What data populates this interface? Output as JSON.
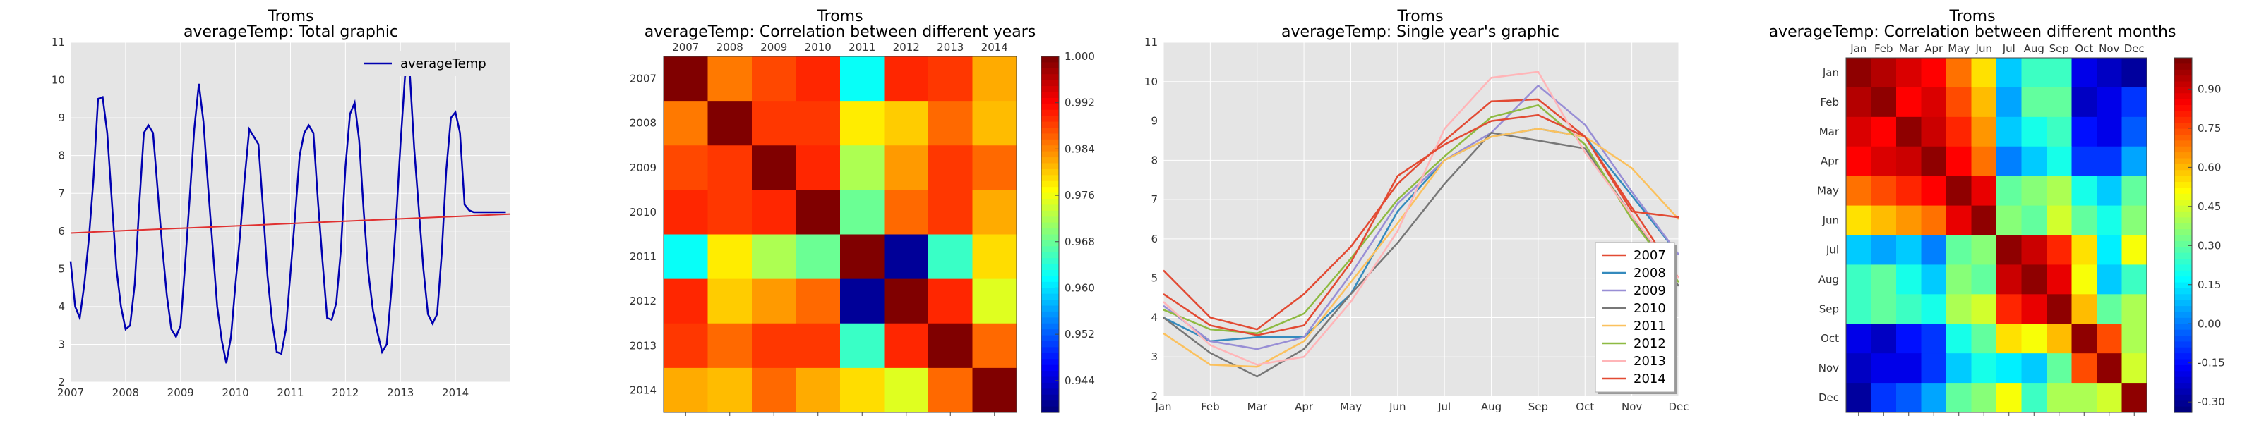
{
  "chart_data": [
    {
      "type": "line",
      "title": "Troms",
      "subtitle": "averageTemp: Total graphic",
      "x_ticks": [
        "2007",
        "2008",
        "2009",
        "2010",
        "2011",
        "2012",
        "2013",
        "2014"
      ],
      "xlim": [
        2007.0,
        2015.0
      ],
      "ylim": [
        2,
        11
      ],
      "y_ticks": [
        "2",
        "3",
        "4",
        "5",
        "6",
        "7",
        "8",
        "9",
        "10",
        "11"
      ],
      "legend": "upper-right",
      "series": [
        {
          "name": "averageTemp",
          "color": "#0000b0",
          "x": [
            2007.0,
            2007.083,
            2007.167,
            2007.25,
            2007.333,
            2007.417,
            2007.5,
            2007.583,
            2007.667,
            2007.75,
            2007.833,
            2007.917,
            2008.0,
            2008.083,
            2008.167,
            2008.25,
            2008.333,
            2008.417,
            2008.5,
            2008.583,
            2008.667,
            2008.75,
            2008.833,
            2008.917,
            2009.0,
            2009.083,
            2009.167,
            2009.25,
            2009.333,
            2009.417,
            2009.5,
            2009.583,
            2009.667,
            2009.75,
            2009.833,
            2009.917,
            2010.0,
            2010.083,
            2010.167,
            2010.25,
            2010.333,
            2010.417,
            2010.5,
            2010.583,
            2010.667,
            2010.75,
            2010.833,
            2010.917,
            2011.0,
            2011.083,
            2011.167,
            2011.25,
            2011.333,
            2011.417,
            2011.5,
            2011.583,
            2011.667,
            2011.75,
            2011.833,
            2011.917,
            2012.0,
            2012.083,
            2012.167,
            2012.25,
            2012.333,
            2012.417,
            2012.5,
            2012.583,
            2012.667,
            2012.75,
            2012.833,
            2012.917,
            2013.0,
            2013.083,
            2013.167,
            2013.25,
            2013.333,
            2013.417,
            2013.5,
            2013.583,
            2013.667,
            2013.75,
            2013.833,
            2013.917,
            2014.0,
            2014.083,
            2014.167,
            2014.25,
            2014.333,
            2014.417,
            2014.5,
            2014.583,
            2014.667,
            2014.75,
            2014.833,
            2014.917
          ],
          "values": [
            5.2,
            4.0,
            3.7,
            4.6,
            5.8,
            7.4,
            9.5,
            9.55,
            8.6,
            6.8,
            5.0,
            4.0,
            3.4,
            3.5,
            4.6,
            6.7,
            8.6,
            8.8,
            8.6,
            7.1,
            5.6,
            4.3,
            3.4,
            3.2,
            3.5,
            5.1,
            6.9,
            8.7,
            9.9,
            8.9,
            7.2,
            5.6,
            4.0,
            3.1,
            2.5,
            3.2,
            4.6,
            5.9,
            7.4,
            8.7,
            8.5,
            8.3,
            6.6,
            4.8,
            3.6,
            2.8,
            2.75,
            3.4,
            4.9,
            6.4,
            8.0,
            8.6,
            8.8,
            8.6,
            6.8,
            5.2,
            3.7,
            3.65,
            4.1,
            5.5,
            7.7,
            9.1,
            9.4,
            8.4,
            6.5,
            4.9,
            3.9,
            3.3,
            2.8,
            3.0,
            4.4,
            6.2,
            8.3,
            10.1,
            10.25,
            8.2,
            6.6,
            5.0,
            3.8,
            3.55,
            3.8,
            5.4,
            7.6,
            9.0,
            9.15,
            8.6,
            6.7,
            6.55,
            6.5,
            6.5,
            6.5,
            6.5,
            6.5,
            6.5,
            6.5,
            6.5
          ]
        }
      ],
      "trend": {
        "color": "#e03030",
        "from": [
          2007.0,
          5.95
        ],
        "to": [
          2015.0,
          6.45
        ]
      }
    },
    {
      "type": "heatmap",
      "title": "Troms",
      "subtitle": "averageTemp: Correlation between different years",
      "labels": [
        "2007",
        "2008",
        "2009",
        "2010",
        "2011",
        "2012",
        "2013",
        "2014"
      ],
      "vmin": 0.9385,
      "vmax": 1.0,
      "colorbar_ticks": [
        "1.000",
        "0.992",
        "0.984",
        "0.976",
        "0.968",
        "0.960",
        "0.952",
        "0.944"
      ],
      "matrix": [
        [
          1.0,
          0.985,
          0.988,
          0.99,
          0.962,
          0.99,
          0.989,
          0.982
        ],
        [
          0.985,
          1.0,
          0.989,
          0.989,
          0.978,
          0.98,
          0.986,
          0.981
        ],
        [
          0.988,
          0.989,
          1.0,
          0.99,
          0.972,
          0.983,
          0.989,
          0.986
        ],
        [
          0.99,
          0.989,
          0.99,
          1.0,
          0.968,
          0.986,
          0.989,
          0.982
        ],
        [
          0.962,
          0.978,
          0.972,
          0.968,
          1.0,
          0.94,
          0.965,
          0.979
        ],
        [
          0.99,
          0.98,
          0.983,
          0.986,
          0.94,
          1.0,
          0.99,
          0.975
        ],
        [
          0.989,
          0.986,
          0.989,
          0.989,
          0.965,
          0.99,
          1.0,
          0.986
        ],
        [
          0.982,
          0.981,
          0.986,
          0.982,
          0.979,
          0.975,
          0.986,
          1.0
        ]
      ]
    },
    {
      "type": "line",
      "title": "Troms",
      "subtitle": "averageTemp: Single year's graphic",
      "categories": [
        "Jan",
        "Feb",
        "Mar",
        "Apr",
        "May",
        "Jun",
        "Jul",
        "Aug",
        "Sep",
        "Oct",
        "Nov",
        "Dec"
      ],
      "ylim": [
        2,
        11
      ],
      "y_ticks": [
        "2",
        "3",
        "4",
        "5",
        "6",
        "7",
        "8",
        "9",
        "10",
        "11"
      ],
      "legend": "lower-right",
      "series": [
        {
          "name": "2007",
          "color": "#e24a33",
          "values": [
            5.2,
            4.0,
            3.7,
            4.6,
            5.8,
            7.4,
            8.5,
            9.5,
            9.55,
            8.6,
            6.8,
            5.0
          ]
        },
        {
          "name": "2008",
          "color": "#348abd",
          "values": [
            4.0,
            3.4,
            3.5,
            3.5,
            4.6,
            6.7,
            8.0,
            8.6,
            8.8,
            8.6,
            7.1,
            5.6
          ]
        },
        {
          "name": "2009",
          "color": "#988ed5",
          "values": [
            4.3,
            3.4,
            3.2,
            3.5,
            5.1,
            6.9,
            8.0,
            8.7,
            9.9,
            8.9,
            7.2,
            5.6
          ]
        },
        {
          "name": "2010",
          "color": "#777777",
          "values": [
            4.0,
            3.1,
            2.5,
            3.2,
            4.6,
            5.9,
            7.4,
            8.7,
            8.5,
            8.3,
            6.6,
            4.8
          ]
        },
        {
          "name": "2011",
          "color": "#fbc15e",
          "values": [
            3.6,
            2.8,
            2.75,
            3.4,
            4.9,
            6.4,
            8.0,
            8.6,
            8.8,
            8.6,
            7.8,
            6.5
          ]
        },
        {
          "name": "2012",
          "color": "#8eba42",
          "values": [
            4.2,
            3.7,
            3.6,
            4.1,
            5.5,
            7.0,
            8.1,
            9.1,
            9.4,
            8.4,
            6.5,
            4.9
          ]
        },
        {
          "name": "2013",
          "color": "#ffb5b8",
          "values": [
            4.4,
            3.3,
            2.8,
            3.0,
            4.4,
            6.2,
            8.8,
            10.1,
            10.25,
            8.2,
            6.6,
            5.0
          ]
        },
        {
          "name": "2014",
          "color": "#e24a33",
          "values": [
            4.6,
            3.8,
            3.55,
            3.8,
            5.4,
            7.6,
            8.4,
            9.0,
            9.15,
            8.6,
            6.7,
            6.55
          ]
        }
      ]
    },
    {
      "type": "heatmap",
      "title": "Troms",
      "subtitle": "averageTemp: Correlation between different months",
      "labels": [
        "Jan",
        "Feb",
        "Mar",
        "Apr",
        "May",
        "Jun",
        "Jul",
        "Aug",
        "Sep",
        "Oct",
        "Nov",
        "Dec"
      ],
      "vmin": -0.34,
      "vmax": 1.02,
      "colorbar_ticks": [
        "0.90",
        "0.75",
        "0.60",
        "0.45",
        "0.30",
        "0.15",
        "0.00",
        "-0.15",
        "-0.30"
      ],
      "matrix": [
        [
          1.0,
          0.95,
          0.9,
          0.85,
          0.7,
          0.55,
          0.1,
          0.25,
          0.25,
          -0.2,
          -0.25,
          -0.3
        ],
        [
          0.95,
          1.0,
          0.85,
          0.9,
          0.75,
          0.6,
          0.05,
          0.3,
          0.3,
          -0.25,
          -0.2,
          -0.1
        ],
        [
          0.9,
          0.85,
          1.0,
          0.92,
          0.8,
          0.65,
          0.1,
          0.2,
          0.25,
          -0.15,
          -0.2,
          -0.05
        ],
        [
          0.85,
          0.9,
          0.92,
          1.0,
          0.85,
          0.7,
          0.0,
          0.1,
          0.2,
          -0.1,
          -0.1,
          0.05
        ],
        [
          0.7,
          0.75,
          0.8,
          0.85,
          1.0,
          0.88,
          0.3,
          0.35,
          0.4,
          0.2,
          0.1,
          0.3
        ],
        [
          0.55,
          0.6,
          0.65,
          0.7,
          0.88,
          1.0,
          0.35,
          0.3,
          0.45,
          0.3,
          0.2,
          0.35
        ],
        [
          0.1,
          0.05,
          0.1,
          0.0,
          0.3,
          0.35,
          1.0,
          0.92,
          0.8,
          0.55,
          0.15,
          0.5
        ],
        [
          0.25,
          0.3,
          0.2,
          0.1,
          0.35,
          0.3,
          0.92,
          1.0,
          0.88,
          0.5,
          0.1,
          0.25
        ],
        [
          0.25,
          0.3,
          0.25,
          0.2,
          0.4,
          0.45,
          0.8,
          0.88,
          1.0,
          0.6,
          0.3,
          0.4
        ],
        [
          -0.2,
          -0.25,
          -0.15,
          -0.1,
          0.2,
          0.3,
          0.55,
          0.5,
          0.6,
          1.0,
          0.75,
          0.4
        ],
        [
          -0.25,
          -0.2,
          -0.2,
          -0.1,
          0.1,
          0.2,
          0.15,
          0.1,
          0.3,
          0.75,
          1.0,
          0.45
        ],
        [
          -0.3,
          -0.1,
          -0.05,
          0.05,
          0.3,
          0.35,
          0.5,
          0.25,
          0.4,
          0.4,
          0.45,
          1.0
        ]
      ]
    }
  ]
}
